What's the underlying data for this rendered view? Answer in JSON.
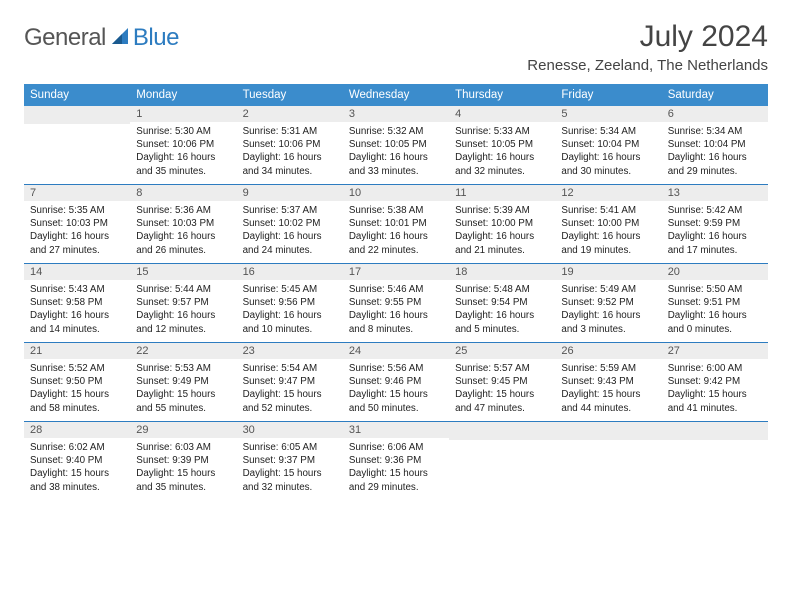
{
  "logo": {
    "text1": "General",
    "text2": "Blue"
  },
  "title": "July 2024",
  "location": "Renesse, Zeeland, The Netherlands",
  "header_bg": "#3b8ccc",
  "border_color": "#2d7cc0",
  "daynum_bg": "#ededed",
  "dayNames": [
    "Sunday",
    "Monday",
    "Tuesday",
    "Wednesday",
    "Thursday",
    "Friday",
    "Saturday"
  ],
  "weeks": [
    [
      {
        "n": "",
        "sr": "",
        "ss": "",
        "dl": ""
      },
      {
        "n": "1",
        "sr": "Sunrise: 5:30 AM",
        "ss": "Sunset: 10:06 PM",
        "dl": "Daylight: 16 hours and 35 minutes."
      },
      {
        "n": "2",
        "sr": "Sunrise: 5:31 AM",
        "ss": "Sunset: 10:06 PM",
        "dl": "Daylight: 16 hours and 34 minutes."
      },
      {
        "n": "3",
        "sr": "Sunrise: 5:32 AM",
        "ss": "Sunset: 10:05 PM",
        "dl": "Daylight: 16 hours and 33 minutes."
      },
      {
        "n": "4",
        "sr": "Sunrise: 5:33 AM",
        "ss": "Sunset: 10:05 PM",
        "dl": "Daylight: 16 hours and 32 minutes."
      },
      {
        "n": "5",
        "sr": "Sunrise: 5:34 AM",
        "ss": "Sunset: 10:04 PM",
        "dl": "Daylight: 16 hours and 30 minutes."
      },
      {
        "n": "6",
        "sr": "Sunrise: 5:34 AM",
        "ss": "Sunset: 10:04 PM",
        "dl": "Daylight: 16 hours and 29 minutes."
      }
    ],
    [
      {
        "n": "7",
        "sr": "Sunrise: 5:35 AM",
        "ss": "Sunset: 10:03 PM",
        "dl": "Daylight: 16 hours and 27 minutes."
      },
      {
        "n": "8",
        "sr": "Sunrise: 5:36 AM",
        "ss": "Sunset: 10:03 PM",
        "dl": "Daylight: 16 hours and 26 minutes."
      },
      {
        "n": "9",
        "sr": "Sunrise: 5:37 AM",
        "ss": "Sunset: 10:02 PM",
        "dl": "Daylight: 16 hours and 24 minutes."
      },
      {
        "n": "10",
        "sr": "Sunrise: 5:38 AM",
        "ss": "Sunset: 10:01 PM",
        "dl": "Daylight: 16 hours and 22 minutes."
      },
      {
        "n": "11",
        "sr": "Sunrise: 5:39 AM",
        "ss": "Sunset: 10:00 PM",
        "dl": "Daylight: 16 hours and 21 minutes."
      },
      {
        "n": "12",
        "sr": "Sunrise: 5:41 AM",
        "ss": "Sunset: 10:00 PM",
        "dl": "Daylight: 16 hours and 19 minutes."
      },
      {
        "n": "13",
        "sr": "Sunrise: 5:42 AM",
        "ss": "Sunset: 9:59 PM",
        "dl": "Daylight: 16 hours and 17 minutes."
      }
    ],
    [
      {
        "n": "14",
        "sr": "Sunrise: 5:43 AM",
        "ss": "Sunset: 9:58 PM",
        "dl": "Daylight: 16 hours and 14 minutes."
      },
      {
        "n": "15",
        "sr": "Sunrise: 5:44 AM",
        "ss": "Sunset: 9:57 PM",
        "dl": "Daylight: 16 hours and 12 minutes."
      },
      {
        "n": "16",
        "sr": "Sunrise: 5:45 AM",
        "ss": "Sunset: 9:56 PM",
        "dl": "Daylight: 16 hours and 10 minutes."
      },
      {
        "n": "17",
        "sr": "Sunrise: 5:46 AM",
        "ss": "Sunset: 9:55 PM",
        "dl": "Daylight: 16 hours and 8 minutes."
      },
      {
        "n": "18",
        "sr": "Sunrise: 5:48 AM",
        "ss": "Sunset: 9:54 PM",
        "dl": "Daylight: 16 hours and 5 minutes."
      },
      {
        "n": "19",
        "sr": "Sunrise: 5:49 AM",
        "ss": "Sunset: 9:52 PM",
        "dl": "Daylight: 16 hours and 3 minutes."
      },
      {
        "n": "20",
        "sr": "Sunrise: 5:50 AM",
        "ss": "Sunset: 9:51 PM",
        "dl": "Daylight: 16 hours and 0 minutes."
      }
    ],
    [
      {
        "n": "21",
        "sr": "Sunrise: 5:52 AM",
        "ss": "Sunset: 9:50 PM",
        "dl": "Daylight: 15 hours and 58 minutes."
      },
      {
        "n": "22",
        "sr": "Sunrise: 5:53 AM",
        "ss": "Sunset: 9:49 PM",
        "dl": "Daylight: 15 hours and 55 minutes."
      },
      {
        "n": "23",
        "sr": "Sunrise: 5:54 AM",
        "ss": "Sunset: 9:47 PM",
        "dl": "Daylight: 15 hours and 52 minutes."
      },
      {
        "n": "24",
        "sr": "Sunrise: 5:56 AM",
        "ss": "Sunset: 9:46 PM",
        "dl": "Daylight: 15 hours and 50 minutes."
      },
      {
        "n": "25",
        "sr": "Sunrise: 5:57 AM",
        "ss": "Sunset: 9:45 PM",
        "dl": "Daylight: 15 hours and 47 minutes."
      },
      {
        "n": "26",
        "sr": "Sunrise: 5:59 AM",
        "ss": "Sunset: 9:43 PM",
        "dl": "Daylight: 15 hours and 44 minutes."
      },
      {
        "n": "27",
        "sr": "Sunrise: 6:00 AM",
        "ss": "Sunset: 9:42 PM",
        "dl": "Daylight: 15 hours and 41 minutes."
      }
    ],
    [
      {
        "n": "28",
        "sr": "Sunrise: 6:02 AM",
        "ss": "Sunset: 9:40 PM",
        "dl": "Daylight: 15 hours and 38 minutes."
      },
      {
        "n": "29",
        "sr": "Sunrise: 6:03 AM",
        "ss": "Sunset: 9:39 PM",
        "dl": "Daylight: 15 hours and 35 minutes."
      },
      {
        "n": "30",
        "sr": "Sunrise: 6:05 AM",
        "ss": "Sunset: 9:37 PM",
        "dl": "Daylight: 15 hours and 32 minutes."
      },
      {
        "n": "31",
        "sr": "Sunrise: 6:06 AM",
        "ss": "Sunset: 9:36 PM",
        "dl": "Daylight: 15 hours and 29 minutes."
      },
      {
        "n": "",
        "sr": "",
        "ss": "",
        "dl": ""
      },
      {
        "n": "",
        "sr": "",
        "ss": "",
        "dl": ""
      },
      {
        "n": "",
        "sr": "",
        "ss": "",
        "dl": ""
      }
    ]
  ]
}
